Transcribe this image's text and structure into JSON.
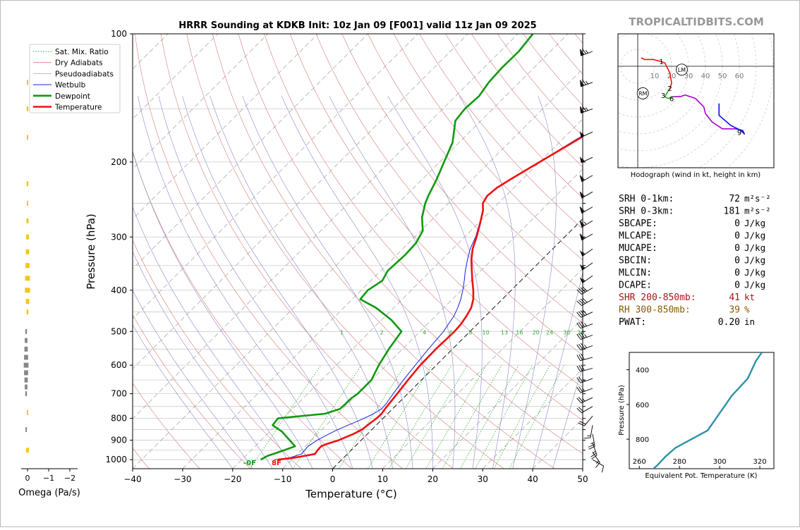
{
  "chart_data": {
    "type": "line",
    "title": "HRRR Sounding at KDKB Init: 10z Jan 09 [F001] valid 11z Jan 09 2025",
    "watermark": "TROPICALTIDBITS.COM",
    "xlabel": "Temperature (°C)",
    "ylabel": "Pressure (hPa)",
    "xlim": [
      -40,
      50
    ],
    "ylim": [
      1050,
      100
    ],
    "x_ticks": [
      -40,
      -30,
      -20,
      -10,
      0,
      10,
      20,
      30,
      40,
      50
    ],
    "x_tick_labels": [
      "−40",
      "−30",
      "−20",
      "−10",
      "0",
      "10",
      "20",
      "30",
      "40",
      "50"
    ],
    "y_ticks": [
      100,
      200,
      300,
      400,
      500,
      600,
      700,
      800,
      900,
      1000
    ],
    "y_tick_labels": [
      "100",
      "200",
      "300",
      "400",
      "500",
      "600",
      "700",
      "800",
      "900",
      "1000"
    ],
    "mixing_ratio_labels": [
      "1",
      "2",
      "4",
      "6",
      "8",
      "10",
      "13",
      "16",
      "20",
      "24",
      "30",
      "36"
    ],
    "legend": {
      "placement": "upper-left",
      "entries": [
        "Sat. Mix. Ratio",
        "Dry Adiabats",
        "Pseudoadiabats",
        "Wetbulb",
        "Dewpoint",
        "Temperature"
      ]
    },
    "colors": {
      "temperature": "#ee1111",
      "dewpoint": "#119911",
      "wetbulb": "#1122dd",
      "dry_adiabat": "#d87a7a",
      "pseudoadiabat": "#8888cc",
      "mixing_ratio": "#33aa33",
      "isobar": "#cccccc"
    },
    "surface_labels": {
      "dewpoint": "-0F",
      "temperature": "8F"
    },
    "series": [
      {
        "name": "Temperature",
        "pressure": [
          1000,
          990,
          970,
          950,
          930,
          920,
          900,
          870,
          850,
          820,
          800,
          780,
          760,
          740,
          720,
          700,
          650,
          600,
          550,
          500,
          480,
          460,
          440,
          420,
          400,
          380,
          360,
          340,
          320,
          300,
          280,
          260,
          250,
          240,
          230,
          220,
          200,
          180,
          160,
          150,
          140,
          130,
          120,
          110,
          100
        ],
        "temp": [
          -12.8,
          -10,
          -6.5,
          -6.7,
          -6.8,
          -6.2,
          -4.5,
          -2.8,
          -2,
          -1.6,
          -1.3,
          -1.2,
          -1.5,
          -1.7,
          -1.9,
          -2.1,
          -2.7,
          -3.2,
          -3.3,
          -3.1,
          -3.3,
          -3.8,
          -4.5,
          -5.8,
          -7.6,
          -9.7,
          -11.8,
          -14,
          -16,
          -17.6,
          -19.5,
          -21.6,
          -23.1,
          -23.7,
          -23.4,
          -22.4,
          -20,
          -17.3,
          -14.3,
          -12.8,
          -11.5,
          -10.1,
          -8.8,
          -7.4,
          -6
        ]
      },
      {
        "name": "Dewpoint",
        "pressure": [
          1000,
          980,
          960,
          930,
          900,
          860,
          830,
          800,
          780,
          760,
          740,
          720,
          700,
          650,
          600,
          550,
          500,
          470,
          440,
          420,
          400,
          380,
          360,
          330,
          310,
          290,
          270,
          250,
          240,
          220,
          200,
          180,
          160,
          150,
          140,
          130,
          120,
          110,
          100
        ],
        "temp": [
          -16.2,
          -15.6,
          -14.1,
          -12,
          -14.3,
          -17.5,
          -20.7,
          -21,
          -12.5,
          -10.5,
          -10.4,
          -10.4,
          -10,
          -10,
          -11.5,
          -12.7,
          -13.7,
          -18,
          -23.5,
          -28.4,
          -28.7,
          -27.7,
          -28.6,
          -28.3,
          -28.5,
          -29.6,
          -32.4,
          -34.6,
          -35.5,
          -37.1,
          -39.1,
          -41.3,
          -45.1,
          -45.6,
          -45.3,
          -46.1,
          -46.4,
          -46.3,
          -47
        ]
      },
      {
        "name": "Wetbulb",
        "pressure": [
          1000,
          990,
          970,
          950,
          930,
          920,
          900,
          870,
          850,
          820,
          800,
          780,
          760,
          740,
          720,
          700,
          650,
          600,
          550,
          500,
          480,
          460,
          440,
          420,
          400,
          380,
          360,
          340,
          320,
          300,
          280,
          260,
          250,
          240,
          230,
          220,
          200,
          180,
          160,
          150,
          140,
          130,
          120,
          110,
          100
        ],
        "temp": [
          -13.5,
          -10.8,
          -9.2,
          -9.3,
          -9.4,
          -9.2,
          -8.8,
          -7.7,
          -6.8,
          -5,
          -3.8,
          -2.8,
          -2.2,
          -2.3,
          -2.6,
          -2.9,
          -3.6,
          -4.2,
          -4.8,
          -5.3,
          -5.8,
          -6.3,
          -7.2,
          -8.3,
          -9.7,
          -11.3,
          -13.1,
          -14.8,
          -16.5,
          -17.8,
          -19.6,
          -21.6,
          -23.1,
          -23.7,
          -23.4,
          -22.4,
          -20.1,
          -17.6,
          -14.8,
          -13.3,
          -12.3,
          -11.2,
          -9.9,
          -8.5,
          -7
        ]
      }
    ],
    "omega": {
      "xlabel": "Omega (Pa/s)",
      "x_tick_labels": [
        "0",
        "−1",
        "−2"
      ],
      "pressure": [
        130,
        150,
        175,
        225,
        250,
        275,
        300,
        325,
        350,
        375,
        400,
        425,
        450,
        500,
        525,
        550,
        575,
        600,
        625,
        650,
        675,
        700,
        775,
        850,
        950
      ],
      "value": [
        0.02,
        0.05,
        0.03,
        0.05,
        0.04,
        0.06,
        0.08,
        0.1,
        0.12,
        0.14,
        0.15,
        0.1,
        0.05,
        -0.05,
        -0.08,
        -0.1,
        -0.12,
        -0.14,
        -0.12,
        -0.1,
        -0.08,
        -0.05,
        0.02,
        -0.02,
        0.08
      ]
    },
    "hodograph": {
      "caption": "Hodograph (wind in kt, height in km)",
      "ring_labels": [
        "10",
        "20",
        "30",
        "40",
        "50",
        "60"
      ],
      "storm_motion_labels": [
        "LM",
        "RM"
      ],
      "lm": [
        26,
        -2
      ],
      "rm": [
        3,
        -16
      ],
      "height_labels": [
        {
          "label": "1",
          "u": 14,
          "v": 3
        },
        {
          "label": "2",
          "u": 19,
          "v": -13
        },
        {
          "label": "3",
          "u": 15,
          "v": -17
        },
        {
          "label": "6",
          "u": 20,
          "v": -19
        },
        {
          "label": "9",
          "u": 60,
          "v": -39
        }
      ],
      "segments": [
        {
          "color": "#ee1111",
          "points": [
            [
              2,
              5
            ],
            [
              4,
              4
            ],
            [
              9,
              4
            ],
            [
              13,
              3
            ],
            [
              16,
              2
            ],
            [
              19,
              -4
            ],
            [
              20,
              -10
            ],
            [
              19,
              -13
            ]
          ]
        },
        {
          "color": "#22aa22",
          "points": [
            [
              19,
              -13
            ],
            [
              16,
              -18
            ],
            [
              18,
              -19
            ],
            [
              21,
              -18
            ]
          ]
        },
        {
          "color": "#aa00cc",
          "points": [
            [
              21,
              -18
            ],
            [
              25,
              -18
            ],
            [
              28,
              -17
            ],
            [
              34,
              -19
            ],
            [
              39,
              -24
            ],
            [
              40,
              -28
            ],
            [
              44,
              -33
            ],
            [
              50,
              -37
            ],
            [
              58,
              -37
            ]
          ]
        },
        {
          "color": "#1111ee",
          "points": [
            [
              58,
              -37
            ],
            [
              62,
              -38
            ],
            [
              63,
              -40
            ],
            [
              61,
              -38
            ],
            [
              55,
              -35
            ],
            [
              48,
              -29
            ],
            [
              48,
              -22
            ]
          ]
        }
      ]
    },
    "theta_e": {
      "xlabel": "Equivalent Pot. Temperature (K)",
      "ylabel": "Pressure (hPa)",
      "x_tick_labels": [
        "260",
        "280",
        "300",
        "320"
      ],
      "y_tick_labels": [
        "400",
        "600",
        "800"
      ],
      "xlim": [
        255,
        327
      ],
      "ylim": [
        970,
        300
      ],
      "pressure": [
        1000,
        990,
        980,
        950,
        900,
        850,
        800,
        750,
        700,
        650,
        600,
        550,
        500,
        450,
        400,
        350,
        300
      ],
      "theta": [
        259,
        261,
        266,
        269,
        273,
        278,
        286,
        294,
        297,
        300,
        303,
        306,
        310,
        314,
        316,
        318,
        321
      ]
    },
    "indices": [
      {
        "label": "SRH 0-1km:",
        "value": "72",
        "unit": "m²s⁻²",
        "color": "#000000"
      },
      {
        "label": "SRH 0-3km:",
        "value": "181",
        "unit": "m²s⁻²",
        "color": "#000000"
      },
      {
        "label": "SBCAPE:",
        "value": "0",
        "unit": "J/kg",
        "color": "#000000"
      },
      {
        "label": "MLCAPE:",
        "value": "0",
        "unit": "J/kg",
        "color": "#000000"
      },
      {
        "label": "MUCAPE:",
        "value": "0",
        "unit": "J/kg",
        "color": "#000000"
      },
      {
        "label": "SBCIN:",
        "value": "0",
        "unit": "J/kg",
        "color": "#000000"
      },
      {
        "label": "MLCIN:",
        "value": "0",
        "unit": "J/kg",
        "color": "#000000"
      },
      {
        "label": "DCAPE:",
        "value": "0",
        "unit": "J/kg",
        "color": "#000000"
      },
      {
        "label": "SHR 200-850mb:",
        "value": "41",
        "unit": "kt",
        "color": "#a01818"
      },
      {
        "label": "RH 300-850mb:",
        "value": "39",
        "unit": "%",
        "color": "#8a5a00"
      },
      {
        "label": "PWAT:",
        "value": "0.20",
        "unit": "in",
        "color": "#000000"
      }
    ],
    "wind_barbs": [
      {
        "p": 110,
        "dir": 250,
        "kt": 75
      },
      {
        "p": 130,
        "dir": 250,
        "kt": 75
      },
      {
        "p": 150,
        "dir": 250,
        "kt": 75
      },
      {
        "p": 170,
        "dir": 245,
        "kt": 55
      },
      {
        "p": 195,
        "dir": 245,
        "kt": 55
      },
      {
        "p": 215,
        "dir": 240,
        "kt": 60
      },
      {
        "p": 235,
        "dir": 240,
        "kt": 60
      },
      {
        "p": 255,
        "dir": 240,
        "kt": 60
      },
      {
        "p": 275,
        "dir": 240,
        "kt": 65
      },
      {
        "p": 295,
        "dir": 240,
        "kt": 60
      },
      {
        "p": 320,
        "dir": 235,
        "kt": 55
      },
      {
        "p": 345,
        "dir": 235,
        "kt": 55
      },
      {
        "p": 370,
        "dir": 235,
        "kt": 55
      },
      {
        "p": 395,
        "dir": 240,
        "kt": 40
      },
      {
        "p": 420,
        "dir": 240,
        "kt": 40
      },
      {
        "p": 450,
        "dir": 245,
        "kt": 40
      },
      {
        "p": 480,
        "dir": 250,
        "kt": 35
      },
      {
        "p": 510,
        "dir": 250,
        "kt": 35
      },
      {
        "p": 540,
        "dir": 250,
        "kt": 35
      },
      {
        "p": 575,
        "dir": 255,
        "kt": 30
      },
      {
        "p": 610,
        "dir": 255,
        "kt": 30
      },
      {
        "p": 645,
        "dir": 250,
        "kt": 25
      },
      {
        "p": 680,
        "dir": 250,
        "kt": 25
      },
      {
        "p": 715,
        "dir": 245,
        "kt": 25
      },
      {
        "p": 750,
        "dir": 240,
        "kt": 20
      },
      {
        "p": 790,
        "dir": 220,
        "kt": 20
      },
      {
        "p": 830,
        "dir": 190,
        "kt": 15
      },
      {
        "p": 870,
        "dir": 170,
        "kt": 25
      },
      {
        "p": 915,
        "dir": 160,
        "kt": 25
      },
      {
        "p": 960,
        "dir": 145,
        "kt": 15
      },
      {
        "p": 1000,
        "dir": 120,
        "kt": 10
      }
    ]
  }
}
